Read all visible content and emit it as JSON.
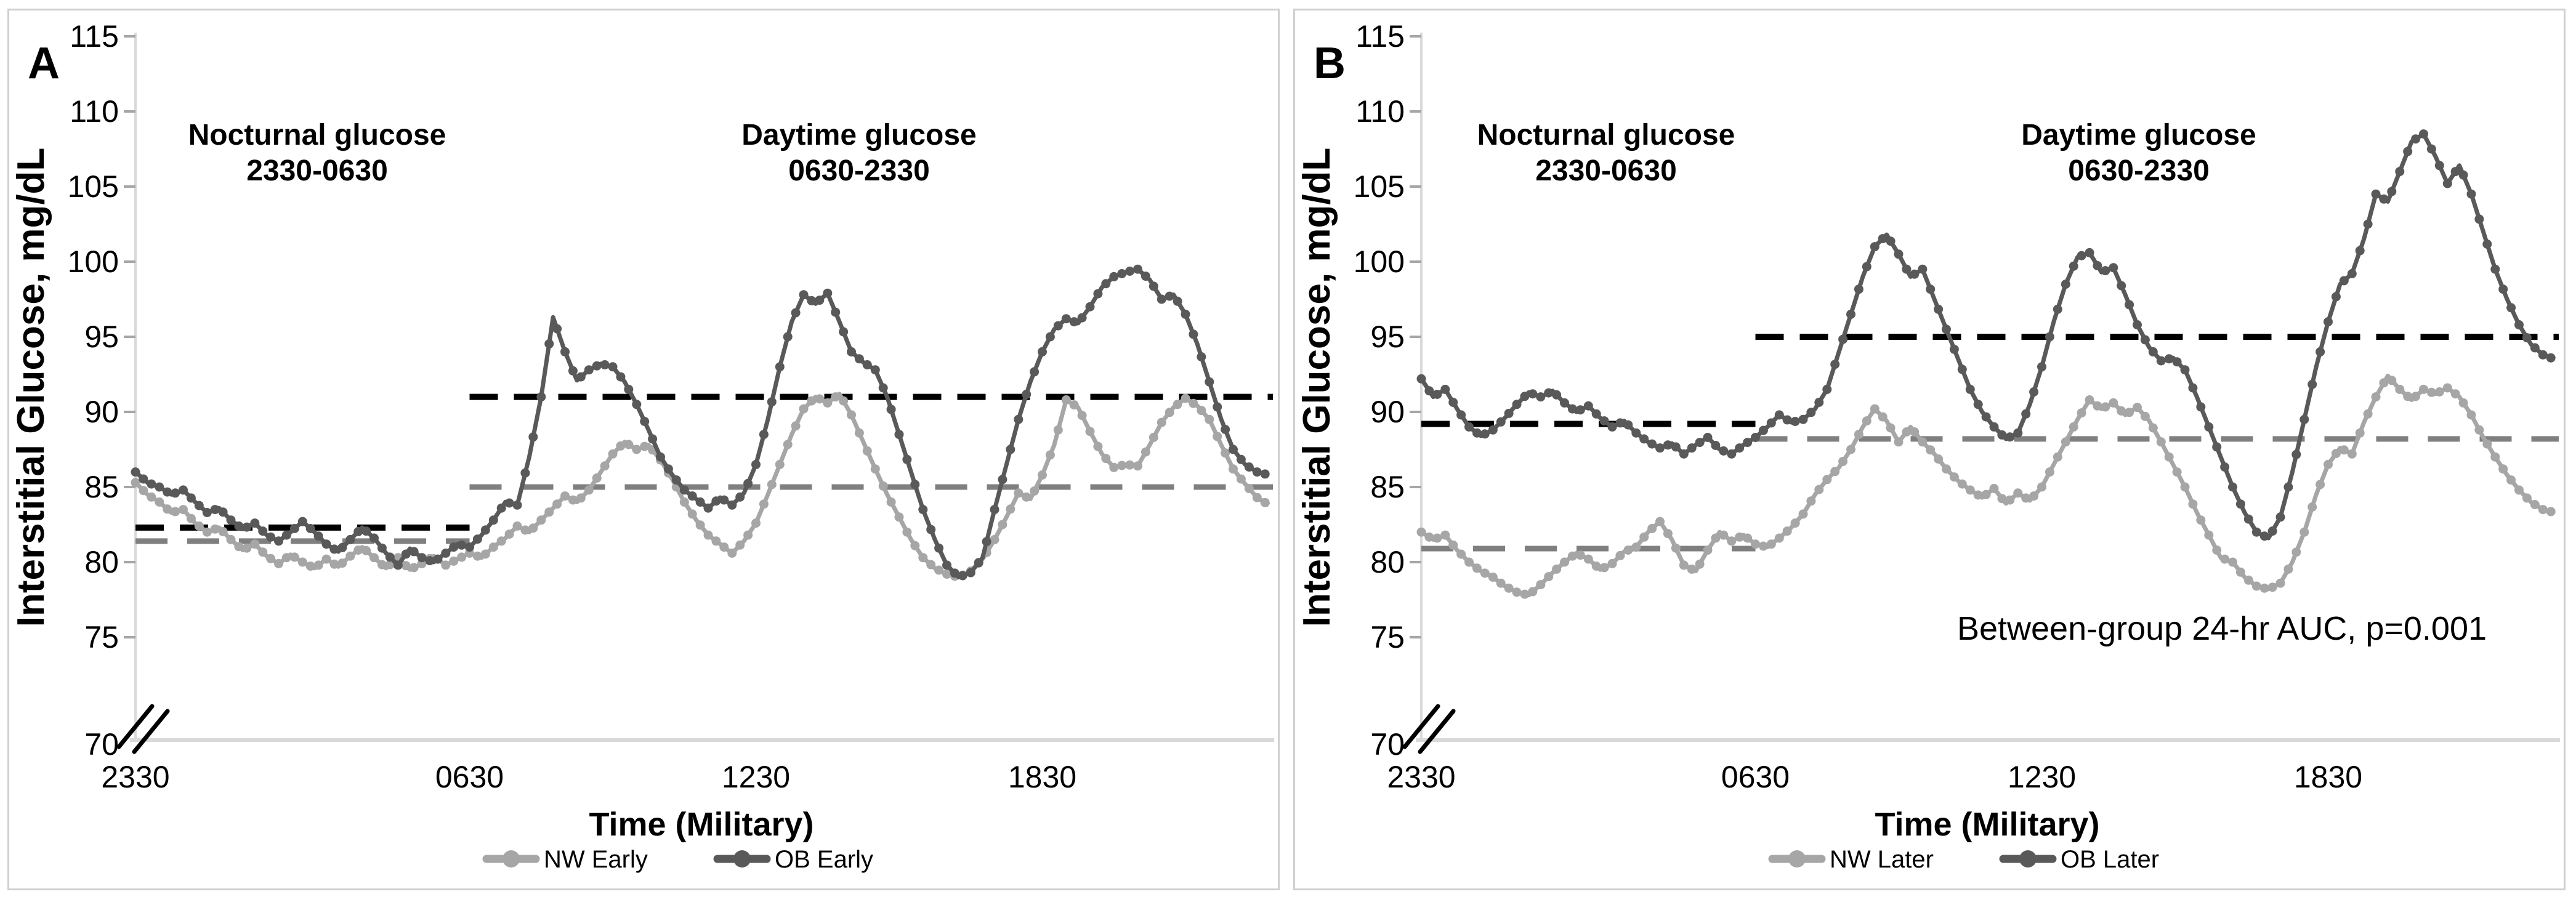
{
  "chart_data": [
    {
      "type": "line",
      "title": "A",
      "xlabel": "Time (Military)",
      "ylabel": "Interstitial Glucose, mg/dL",
      "ylim": [
        70,
        115
      ],
      "y_ticks": [
        70,
        75,
        80,
        85,
        90,
        95,
        100,
        105,
        110,
        115
      ],
      "axis_break_below": 75,
      "x_start": "2330",
      "x_interval_min": 15,
      "x_ticks": [
        {
          "label": "2330",
          "hour": 0
        },
        {
          "label": "0630",
          "hour": 7
        },
        {
          "label": "1230",
          "hour": 13
        },
        {
          "label": "1830",
          "hour": 19
        }
      ],
      "annotations": {
        "nocturnal_line1": "Nocturnal glucose",
        "nocturnal_line2": "2330-0630",
        "daytime_line1": "Daytime glucose",
        "daytime_line2": "0630-2330",
        "stat_note": ""
      },
      "series": [
        {
          "name": "NW Early",
          "color": "#a6a6a6",
          "values": [
            85.3,
            84.5,
            84.0,
            83.3,
            83.5,
            82.6,
            82.0,
            82.3,
            81.5,
            80.8,
            81.2,
            80.4,
            79.9,
            80.5,
            80.0,
            79.6,
            80.2,
            79.7,
            80.4,
            81.0,
            80.3,
            79.6,
            80.3,
            79.5,
            79.9,
            80.4,
            79.8,
            80.2,
            80.6,
            80.3,
            81.0,
            81.6,
            82.4,
            82.0,
            82.8,
            83.6,
            84.4,
            84.0,
            84.8,
            86.0,
            87.2,
            88.0,
            87.5,
            87.8,
            86.8,
            85.5,
            84.0,
            82.8,
            81.8,
            81.2,
            80.6,
            81.4,
            82.6,
            84.5,
            86.5,
            88.5,
            90.2,
            91.0,
            90.6,
            91.2,
            89.8,
            88.0,
            86.2,
            84.5,
            83.0,
            81.5,
            80.3,
            79.6,
            79.2,
            79.0,
            79.4,
            80.2,
            81.5,
            83.0,
            84.6,
            84.2,
            85.8,
            87.8,
            90.8,
            90.3,
            88.7,
            87.2,
            86.3,
            86.5,
            86.4,
            87.8,
            89.3,
            90.3,
            90.9,
            90.4,
            89.5,
            87.8,
            86.2,
            85.2,
            84.3,
            83.8
          ]
        },
        {
          "name": "OB Early",
          "color": "#595959",
          "values": [
            86.0,
            85.3,
            85.0,
            84.5,
            84.8,
            84.0,
            83.3,
            83.6,
            82.8,
            82.2,
            82.6,
            81.8,
            81.4,
            82.0,
            82.7,
            82.0,
            81.2,
            80.7,
            81.5,
            82.3,
            81.6,
            80.6,
            79.8,
            80.9,
            80.3,
            80.0,
            80.6,
            81.2,
            81.0,
            81.8,
            82.8,
            84.0,
            83.8,
            87.0,
            91.0,
            96.3,
            94.0,
            92.1,
            92.8,
            93.2,
            93.0,
            92.0,
            90.5,
            88.8,
            87.0,
            85.8,
            84.8,
            84.2,
            83.6,
            84.3,
            83.8,
            84.6,
            86.5,
            89.5,
            93.0,
            96.0,
            97.8,
            97.2,
            97.9,
            96.0,
            94.0,
            93.3,
            92.8,
            91.0,
            88.5,
            86.0,
            83.5,
            81.5,
            79.8,
            79.0,
            79.3,
            80.3,
            83.5,
            86.5,
            89.5,
            92.0,
            94.0,
            95.5,
            96.2,
            95.9,
            97.0,
            98.3,
            99.0,
            99.3,
            99.5,
            98.8,
            97.5,
            97.8,
            96.5,
            94.5,
            92.0,
            89.5,
            87.5,
            86.5,
            86.0,
            85.8
          ]
        }
      ],
      "mean_lines": [
        {
          "name": "OB nocturnal mean",
          "period_hours": [
            0,
            7
          ],
          "value": 82.3,
          "color": "#000000"
        },
        {
          "name": "NW nocturnal mean",
          "period_hours": [
            0,
            7
          ],
          "value": 81.4,
          "color": "#7f7f7f"
        },
        {
          "name": "OB daytime mean",
          "period_hours": [
            7,
            23.85
          ],
          "value": 91.0,
          "color": "#000000"
        },
        {
          "name": "NW daytime mean",
          "period_hours": [
            7,
            23.85
          ],
          "value": 85.0,
          "color": "#7f7f7f"
        }
      ]
    },
    {
      "type": "line",
      "title": "B",
      "xlabel": "Time (Military)",
      "ylabel": "Interstitial Glucose, mg/dL",
      "ylim": [
        70,
        115
      ],
      "y_ticks": [
        70,
        75,
        80,
        85,
        90,
        95,
        100,
        105,
        110,
        115
      ],
      "axis_break_below": 75,
      "x_start": "2330",
      "x_interval_min": 15,
      "x_ticks": [
        {
          "label": "2330",
          "hour": 0
        },
        {
          "label": "0630",
          "hour": 7
        },
        {
          "label": "1230",
          "hour": 13
        },
        {
          "label": "1830",
          "hour": 19
        }
      ],
      "annotations": {
        "nocturnal_line1": "Nocturnal glucose",
        "nocturnal_line2": "2330-0630",
        "daytime_line1": "Daytime glucose",
        "daytime_line2": "0630-2330",
        "stat_note": "Between-group 24-hr AUC, p=0.001"
      },
      "series": [
        {
          "name": "NW Later",
          "color": "#a6a6a6",
          "values": [
            82.0,
            81.5,
            81.8,
            80.8,
            80.0,
            79.4,
            79.0,
            78.4,
            78.0,
            77.8,
            78.5,
            79.3,
            80.0,
            80.6,
            80.2,
            79.5,
            79.9,
            80.7,
            81.0,
            82.0,
            82.7,
            81.5,
            79.8,
            79.4,
            80.8,
            82.0,
            81.4,
            81.8,
            81.2,
            81.0,
            81.6,
            82.3,
            83.2,
            84.5,
            85.5,
            86.3,
            87.5,
            89.0,
            90.2,
            89.4,
            88.0,
            89.0,
            88.0,
            87.2,
            86.2,
            85.4,
            84.8,
            84.3,
            84.9,
            83.9,
            84.6,
            84.1,
            85.0,
            86.5,
            88.0,
            89.5,
            90.8,
            90.2,
            90.6,
            89.8,
            90.3,
            89.4,
            88.0,
            86.5,
            85.0,
            83.3,
            81.8,
            80.3,
            80.0,
            79.0,
            78.4,
            78.2,
            78.6,
            80.0,
            82.0,
            84.5,
            86.5,
            87.6,
            87.2,
            89.3,
            91.0,
            92.4,
            91.5,
            90.8,
            91.5,
            91.2,
            91.6,
            91.0,
            89.8,
            88.3,
            87.0,
            85.8,
            84.8,
            84.0,
            83.5,
            83.3
          ]
        },
        {
          "name": "OB Later",
          "color": "#595959",
          "values": [
            92.2,
            91.0,
            91.5,
            90.2,
            89.0,
            88.4,
            88.8,
            89.6,
            90.5,
            91.3,
            91.0,
            91.4,
            90.6,
            90.0,
            90.4,
            89.6,
            89.0,
            89.4,
            88.6,
            88.0,
            87.6,
            87.9,
            87.2,
            87.8,
            88.3,
            87.5,
            87.2,
            87.8,
            88.3,
            89.0,
            89.8,
            89.3,
            89.5,
            90.2,
            91.5,
            94.0,
            96.5,
            99.0,
            101.0,
            101.8,
            100.5,
            99.0,
            99.5,
            97.5,
            95.5,
            93.5,
            91.5,
            90.0,
            89.0,
            88.2,
            88.6,
            90.5,
            93.0,
            96.0,
            98.5,
            100.3,
            100.6,
            99.3,
            99.6,
            97.8,
            95.8,
            94.3,
            93.4,
            93.6,
            92.8,
            91.0,
            89.0,
            87.0,
            85.0,
            83.3,
            82.0,
            81.6,
            83.0,
            86.0,
            89.5,
            93.0,
            96.0,
            98.5,
            99.2,
            101.5,
            104.5,
            104.0,
            106.0,
            108.0,
            108.5,
            107.0,
            105.2,
            106.4,
            104.5,
            102.0,
            99.5,
            97.5,
            95.8,
            94.5,
            93.8,
            93.5
          ]
        }
      ],
      "mean_lines": [
        {
          "name": "OB nocturnal mean",
          "period_hours": [
            0,
            7
          ],
          "value": 89.2,
          "color": "#000000"
        },
        {
          "name": "NW nocturnal mean",
          "period_hours": [
            0,
            7
          ],
          "value": 80.9,
          "color": "#7f7f7f"
        },
        {
          "name": "OB daytime mean",
          "period_hours": [
            7,
            23.85
          ],
          "value": 95.0,
          "color": "#000000"
        },
        {
          "name": "NW daytime mean",
          "period_hours": [
            7,
            23.85
          ],
          "value": 88.2,
          "color": "#7f7f7f"
        }
      ]
    }
  ],
  "style": {
    "series_dark": "#595959",
    "series_light": "#a6a6a6",
    "mean_line_black": "#000000",
    "mean_line_gray": "#7f7f7f",
    "axis_line": "#d9d9d9",
    "tick_mark": "#a6a6a6",
    "panel_border": "#cfcfcf"
  }
}
